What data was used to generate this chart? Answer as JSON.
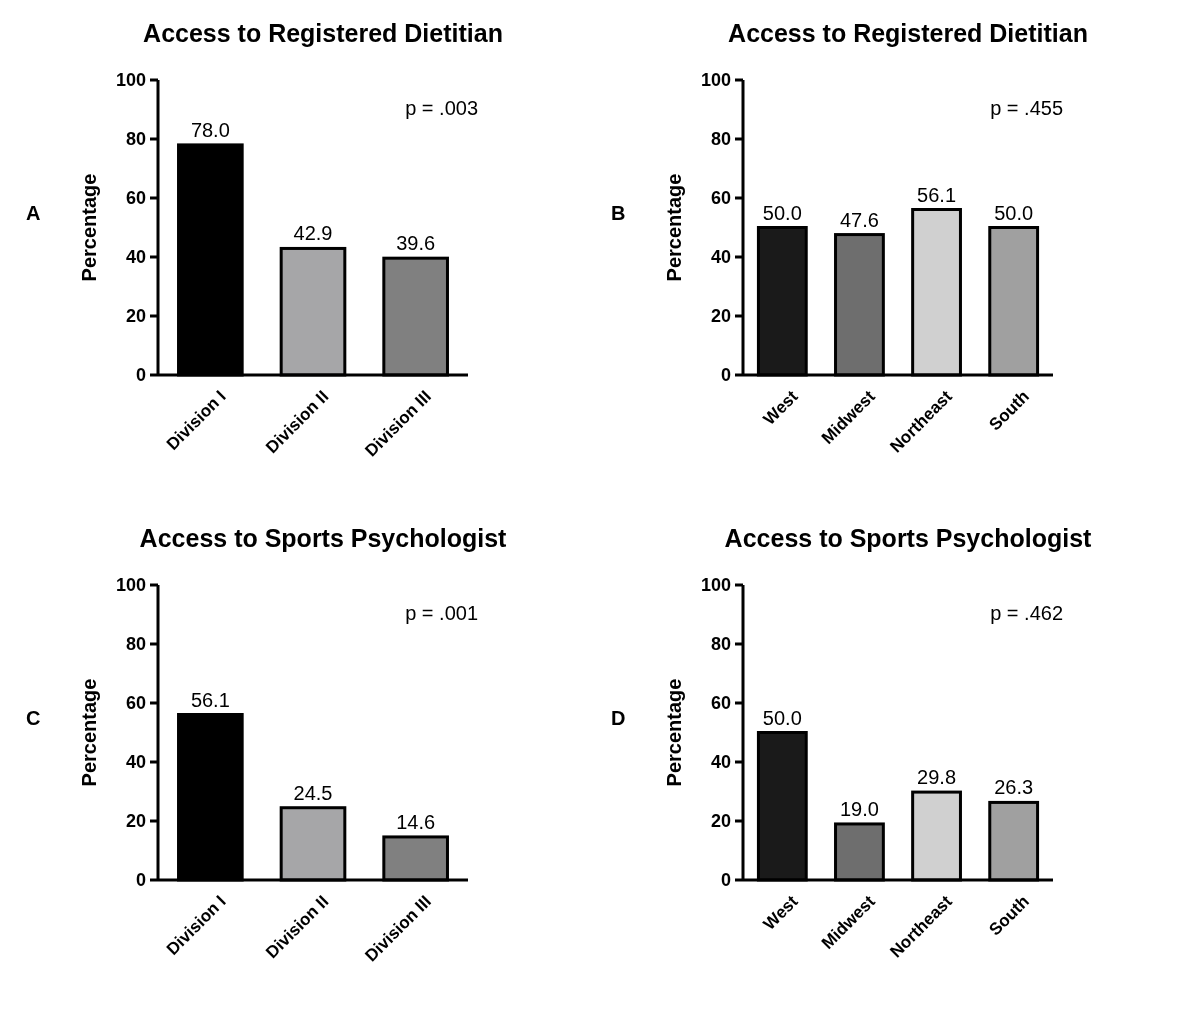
{
  "chart_data": [
    {
      "type": "bar",
      "title": "Access to Registered Dietitian",
      "ylabel": "Percentage",
      "categories": [
        "Division I",
        "Division II",
        "Division III"
      ],
      "values": [
        78.0,
        42.9,
        39.6
      ],
      "value_labels": [
        "78.0",
        "42.9",
        "39.6"
      ],
      "colors": [
        "#000000",
        "#a6a6a8",
        "#808080"
      ],
      "ylim": [
        0,
        100
      ],
      "yticks": [
        0,
        20,
        40,
        60,
        80,
        100
      ],
      "annotations": [
        "A",
        "p = .003"
      ]
    },
    {
      "type": "bar",
      "title": "Access to Registered Dietitian",
      "ylabel": "Percentage",
      "categories": [
        "West",
        "Midwest",
        "Northeast",
        "South"
      ],
      "values": [
        50.0,
        47.6,
        56.1,
        50.0
      ],
      "value_labels": [
        "50.0",
        "47.6",
        "56.1",
        "50.0"
      ],
      "colors": [
        "#1a1a1a",
        "#6e6e6e",
        "#d0d0d0",
        "#a0a0a0"
      ],
      "ylim": [
        0,
        100
      ],
      "yticks": [
        0,
        20,
        40,
        60,
        80,
        100
      ],
      "annotations": [
        "B",
        "p = .455"
      ]
    },
    {
      "type": "bar",
      "title": "Access to Sports Psychologist",
      "ylabel": "Percentage",
      "categories": [
        "Division I",
        "Division II",
        "Division III"
      ],
      "values": [
        56.1,
        24.5,
        14.6
      ],
      "value_labels": [
        "56.1",
        "24.5",
        "14.6"
      ],
      "colors": [
        "#000000",
        "#a6a6a8",
        "#808080"
      ],
      "ylim": [
        0,
        100
      ],
      "yticks": [
        0,
        20,
        40,
        60,
        80,
        100
      ],
      "annotations": [
        "C",
        "p = .001"
      ]
    },
    {
      "type": "bar",
      "title": "Access to Sports Psychologist",
      "ylabel": "Percentage",
      "categories": [
        "West",
        "Midwest",
        "Northeast",
        "South"
      ],
      "values": [
        50.0,
        19.0,
        29.8,
        26.3
      ],
      "value_labels": [
        "50.0",
        "19.0",
        "29.8",
        "26.3"
      ],
      "colors": [
        "#1a1a1a",
        "#6e6e6e",
        "#d0d0d0",
        "#a0a0a0"
      ],
      "ylim": [
        0,
        100
      ],
      "yticks": [
        0,
        20,
        40,
        60,
        80,
        100
      ],
      "annotations": [
        "D",
        "p = .462"
      ]
    }
  ]
}
